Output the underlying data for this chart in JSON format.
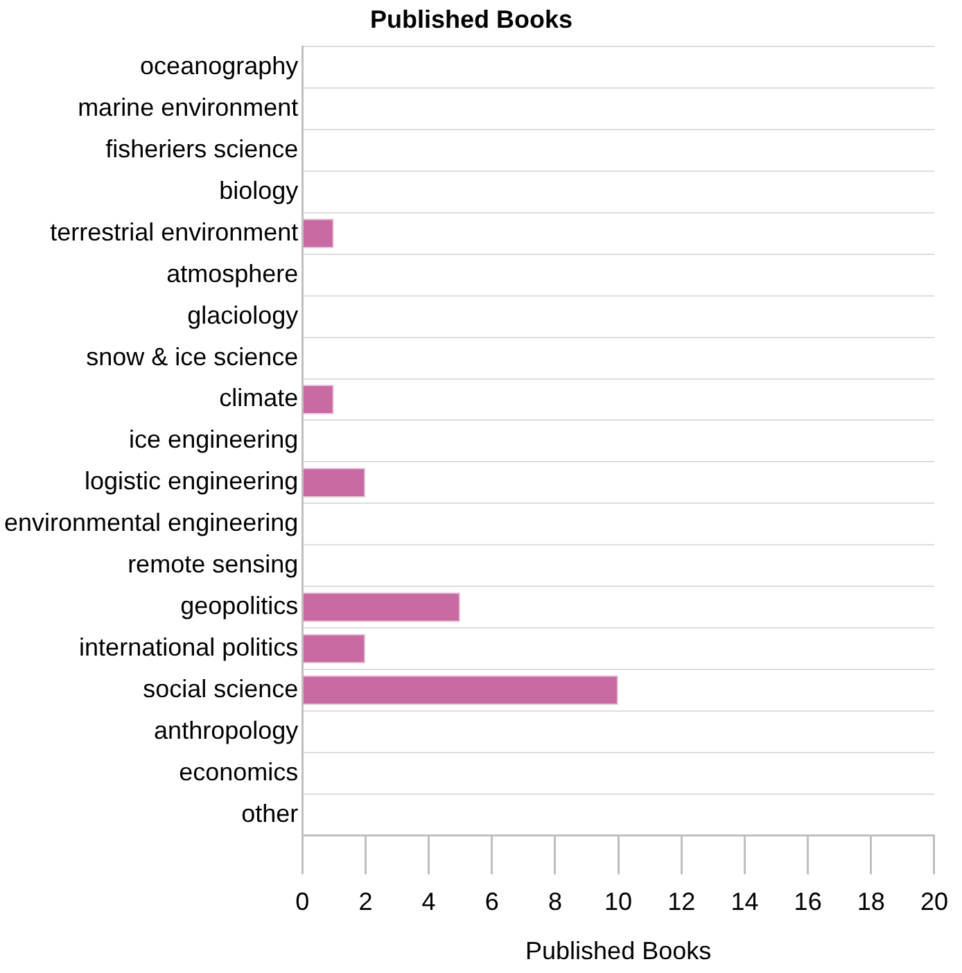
{
  "chart_data": {
    "type": "bar",
    "orientation": "horizontal",
    "title": "Published Books",
    "xlabel": "Published Books",
    "categories": [
      "oceanography",
      "marine environment",
      "fisheriers science",
      "biology",
      "terrestrial environment",
      "atmosphere",
      "glaciology",
      "snow & ice science",
      "climate",
      "ice engineering",
      "logistic engineering",
      "environmental engineering",
      "remote sensing",
      "geopolitics",
      "international politics",
      "social science",
      "anthropology",
      "economics",
      "other"
    ],
    "values": [
      0,
      0,
      0,
      0,
      1,
      0,
      0,
      0,
      1,
      0,
      2,
      0,
      0,
      5,
      2,
      10,
      0,
      0,
      0
    ],
    "color": "#c96aa3",
    "xlim": [
      0,
      20
    ],
    "xticks": [
      0,
      2,
      4,
      6,
      8,
      10,
      12,
      14,
      16,
      18,
      20
    ],
    "grid": "y",
    "legend": false
  }
}
